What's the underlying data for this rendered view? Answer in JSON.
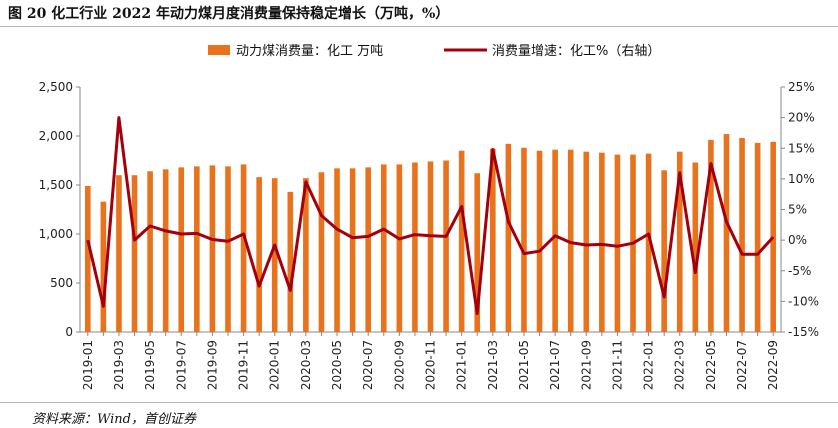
{
  "title": "图 20 化工行业 2022 年动力煤月度消费量保持稳定增长（万吨，%）",
  "source": "资料来源：Wind，首创证券",
  "colors": {
    "bar": "#e8731c",
    "line": "#a3000b"
  },
  "chart_data": {
    "type": "bar+line",
    "title": "图 20 化工行业 2022 年动力煤月度消费量保持稳定增长（万吨，%）",
    "legend_position": "top",
    "grid": false,
    "categories": [
      "2019-01",
      "2019-02",
      "2019-03",
      "2019-04",
      "2019-05",
      "2019-06",
      "2019-07",
      "2019-08",
      "2019-09",
      "2019-10",
      "2019-11",
      "2019-12",
      "2020-01",
      "2020-02",
      "2020-03",
      "2020-04",
      "2020-05",
      "2020-06",
      "2020-07",
      "2020-08",
      "2020-09",
      "2020-10",
      "2020-11",
      "2020-12",
      "2021-01",
      "2021-02",
      "2021-03",
      "2021-04",
      "2021-05",
      "2021-06",
      "2021-07",
      "2021-08",
      "2021-09",
      "2021-10",
      "2021-11",
      "2021-12",
      "2022-01",
      "2022-02",
      "2022-03",
      "2022-04",
      "2022-05",
      "2022-06",
      "2022-07",
      "2022-08",
      "2022-09"
    ],
    "x_tick_labels": [
      "2019-01",
      "2019-03",
      "2019-05",
      "2019-07",
      "2019-09",
      "2019-11",
      "2020-01",
      "2020-03",
      "2020-05",
      "2020-07",
      "2020-09",
      "2020-11",
      "2021-01",
      "2021-03",
      "2021-05",
      "2021-07",
      "2021-09",
      "2021-11",
      "2022-01",
      "2022-03",
      "2022-05",
      "2022-07",
      "2022-09"
    ],
    "series": [
      {
        "name": "动力煤消费量：化工 万吨",
        "type": "bar",
        "axis": "left",
        "values": [
          1490,
          1330,
          1600,
          1600,
          1640,
          1660,
          1680,
          1690,
          1700,
          1690,
          1710,
          1580,
          1570,
          1430,
          1570,
          1630,
          1670,
          1670,
          1680,
          1710,
          1710,
          1730,
          1740,
          1750,
          1850,
          1620,
          1870,
          1920,
          1880,
          1850,
          1860,
          1860,
          1840,
          1830,
          1810,
          1810,
          1820,
          1650,
          1840,
          1730,
          1960,
          2020,
          1980,
          1930,
          1940
        ]
      },
      {
        "name": "消费量增速：化工%（右轴）",
        "type": "line",
        "axis": "right",
        "values": [
          0,
          -10.8,
          20,
          0,
          2.3,
          1.5,
          1,
          1.1,
          0.1,
          -0.2,
          1,
          -7.5,
          -0.8,
          -8.2,
          9.5,
          4,
          1.8,
          0.4,
          0.6,
          1.8,
          0.2,
          0.9,
          0.7,
          0.6,
          5.5,
          -12,
          14.8,
          3,
          -2.2,
          -1.8,
          0.7,
          -0.4,
          -0.8,
          -0.7,
          -1,
          -0.5,
          1,
          -9.3,
          11,
          -5.3,
          12.5,
          3,
          -2.3,
          -2.3,
          0.5
        ]
      }
    ],
    "y_left": {
      "ylim": [
        0,
        2500
      ],
      "ticks": [
        0,
        500,
        1000,
        1500,
        2000,
        2500
      ],
      "tick_labels": [
        "0",
        "500",
        "1,000",
        "1,500",
        "2,000",
        "2,500"
      ]
    },
    "y_right": {
      "ylim": [
        -15,
        25
      ],
      "ticks": [
        -15,
        -10,
        -5,
        0,
        5,
        10,
        15,
        20,
        25
      ],
      "tick_labels": [
        "-15%",
        "-10%",
        "-5%",
        "0%",
        "5%",
        "10%",
        "15%",
        "20%",
        "25%"
      ]
    }
  }
}
